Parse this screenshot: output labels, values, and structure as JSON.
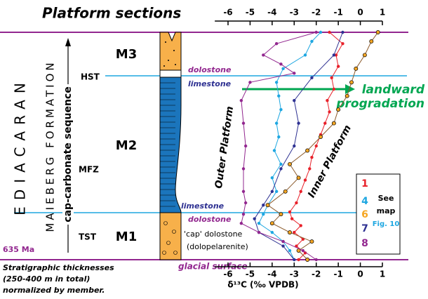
{
  "chart_data": {
    "type": "line",
    "title": "Platform sections",
    "xlabel": "δ¹³C (‰ VPDB)",
    "xlim": [
      -6.6,
      1.0
    ],
    "xticks": [
      -6,
      -5,
      -4,
      -3,
      -2,
      -1,
      0,
      1
    ],
    "ylim": [
      0,
      100
    ],
    "series": [
      {
        "name": "1",
        "color": "#e8212a",
        "x": [
          -2.8,
          -2.5,
          -2.9,
          -2.6,
          -3.0,
          -2.7,
          -3.1,
          -3.2,
          -2.9,
          -2.7,
          -2.5,
          -2.3,
          -2.2,
          -2.0,
          -1.8,
          -1.6,
          -1.4,
          -1.5,
          -1.2,
          -1.3,
          -1.0,
          -1.1,
          -0.8,
          -1.4
        ],
        "values": [
          0,
          3,
          6,
          9,
          12,
          15,
          18,
          21,
          25,
          30,
          35,
          40,
          45,
          50,
          55,
          60,
          65,
          70,
          75,
          80,
          85,
          90,
          95,
          100
        ]
      },
      {
        "name": "4",
        "color": "#1ea7e1",
        "x": [
          -3.0,
          -3.2,
          -3.5,
          -4.0,
          -4.6,
          -4.4,
          -4.2,
          -3.8,
          -4.0,
          -3.6,
          -3.9,
          -3.7,
          -3.8,
          -3.6,
          -3.7,
          -3.8,
          -3.5,
          -2.5,
          -2.2,
          -1.8
        ],
        "values": [
          0,
          4,
          8,
          12,
          16,
          20,
          24,
          30,
          36,
          42,
          48,
          54,
          60,
          66,
          72,
          78,
          84,
          90,
          96,
          100
        ]
      },
      {
        "name": "6",
        "color": "#f5a623",
        "x": [
          -2.4,
          -2.8,
          -2.2,
          -3.2,
          -4.0,
          -3.6,
          -4.2,
          -3.4,
          -2.8,
          -3.2,
          -2.4,
          -1.8,
          -1.2,
          -1.0,
          -0.6,
          -0.4,
          -0.2,
          0.2,
          0.5,
          0.8
        ],
        "values": [
          0,
          4,
          8,
          12,
          16,
          20,
          24,
          30,
          36,
          42,
          48,
          54,
          60,
          66,
          72,
          78,
          84,
          90,
          96,
          100
        ]
      },
      {
        "name": "7",
        "color": "#2e3192",
        "x": [
          -3.0,
          -3.5,
          -4.6,
          -4.8,
          -4.4,
          -4.0,
          -3.6,
          -3.0,
          -2.8,
          -3.0,
          -2.2,
          -1.2,
          -0.8
        ],
        "values": [
          0,
          6,
          12,
          18,
          24,
          30,
          40,
          50,
          60,
          70,
          80,
          90,
          100
        ]
      },
      {
        "name": "8",
        "color": "#92278f",
        "x": [
          -2.0,
          -2.6,
          -3.5,
          -4.6,
          -5.4,
          -5.3,
          -5.2,
          -5.3,
          -5.3,
          -5.2,
          -5.3,
          -5.4,
          -5.0,
          -3.0,
          -3.6,
          -4.4,
          -3.8,
          -2.0
        ],
        "values": [
          0,
          4,
          8,
          12,
          16,
          20,
          25,
          30,
          40,
          50,
          60,
          70,
          78,
          82,
          86,
          90,
          95,
          100
        ]
      }
    ],
    "labels": {
      "era": "EDIACARAN",
      "formation": "MAIEBERG FORMATION",
      "sequence": "cap-carbonate sequence",
      "m3": "M3",
      "m2": "M2",
      "m1": "M1",
      "hst": "HST",
      "mfz": "MFZ",
      "tst": "TST",
      "age": "635 Ma",
      "dolostone_top": "dolostone",
      "limestone_top": "limestone",
      "limestone_bottom": "limestone",
      "dolostone_bottom": "dolostone",
      "cap": "'cap' dolostone",
      "cap2": "(dolopelarenite)",
      "glacial": "glacial surface",
      "outer": "Outer Platform",
      "inner": "Inner Platform",
      "landward": "landward",
      "progradation": "progradation",
      "see": "See",
      "map": "map",
      "fig": "Fig. 10",
      "note1": "Stratigraphic thicknesses",
      "note2": "(250-400 m in total)",
      "note3": "normalized by member."
    }
  }
}
